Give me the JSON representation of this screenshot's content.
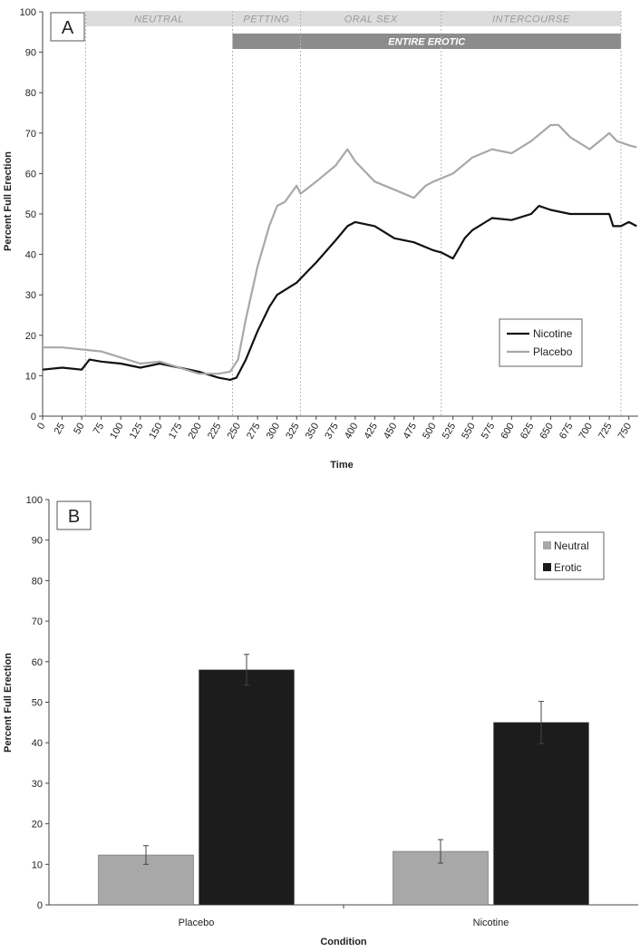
{
  "chart_data": [
    {
      "type": "line",
      "panel_label": "A",
      "xlabel": "Time",
      "ylabel": "Percent Full Erection",
      "xlim": [
        0,
        762
      ],
      "ylim": [
        0,
        100
      ],
      "xticks": [
        0,
        25,
        50,
        75,
        100,
        125,
        150,
        175,
        200,
        225,
        250,
        275,
        300,
        325,
        350,
        375,
        400,
        425,
        450,
        475,
        500,
        525,
        550,
        575,
        600,
        625,
        650,
        675,
        700,
        725,
        750
      ],
      "yticks": [
        0,
        10,
        20,
        30,
        40,
        50,
        60,
        70,
        80,
        90,
        100
      ],
      "phases": [
        {
          "label": "NEUTRAL",
          "start": 0,
          "end": 243
        },
        {
          "label": "PETTING",
          "start": 243,
          "end": 330
        },
        {
          "label": "ORAL SEX",
          "start": 330,
          "end": 510
        },
        {
          "label": "INTERCOURSE",
          "start": 510,
          "end": 740
        }
      ],
      "phase_dividers": [
        55,
        243,
        330,
        510,
        740
      ],
      "erotic_bar": {
        "label": "ENTIRE EROTIC",
        "start": 243,
        "end": 740
      },
      "legend_position": "right",
      "series": [
        {
          "name": "Nicotine",
          "color": "#111111",
          "x": [
            0,
            25,
            50,
            60,
            75,
            100,
            125,
            150,
            175,
            200,
            225,
            240,
            248,
            260,
            275,
            290,
            300,
            325,
            340,
            350,
            375,
            390,
            400,
            425,
            450,
            475,
            500,
            510,
            525,
            540,
            550,
            575,
            600,
            625,
            635,
            650,
            675,
            700,
            725,
            730,
            740,
            750,
            760
          ],
          "values": [
            11.5,
            12,
            11.5,
            14,
            13.5,
            13,
            12,
            13,
            12,
            11,
            9.5,
            9,
            9.5,
            14,
            21,
            27,
            30,
            33,
            36,
            38,
            43.5,
            47,
            48,
            47,
            44,
            43,
            41,
            40.5,
            39,
            44,
            46,
            49,
            48.5,
            50,
            52,
            51,
            50,
            50,
            50,
            47,
            47,
            48,
            47
          ]
        },
        {
          "name": "Placebo",
          "color": "#a8a8a8",
          "x": [
            0,
            25,
            50,
            75,
            100,
            125,
            150,
            175,
            200,
            225,
            240,
            250,
            260,
            275,
            290,
            300,
            310,
            325,
            330,
            350,
            375,
            390,
            400,
            425,
            450,
            475,
            490,
            500,
            525,
            550,
            575,
            600,
            625,
            650,
            660,
            675,
            700,
            725,
            735,
            750,
            760
          ],
          "values": [
            17,
            17,
            16.5,
            16,
            14.5,
            13,
            13.5,
            12,
            10.5,
            10.5,
            11,
            14,
            24,
            37,
            47,
            52,
            53,
            57,
            55,
            58,
            62,
            66,
            63,
            58,
            56,
            54,
            57,
            58,
            60,
            64,
            66,
            65,
            68,
            72,
            72,
            69,
            66,
            70,
            68,
            67,
            66.5
          ]
        }
      ]
    },
    {
      "type": "bar",
      "panel_label": "B",
      "xlabel": "Condition",
      "ylabel": "Percent Full Erection",
      "ylim": [
        0,
        100
      ],
      "yticks": [
        0,
        10,
        20,
        30,
        40,
        50,
        60,
        70,
        80,
        90,
        100
      ],
      "categories": [
        "Placebo",
        "Nicotine"
      ],
      "legend_position": "top-right",
      "series": [
        {
          "name": "Neutral",
          "color": "#a8a8a8",
          "values": [
            12.3,
            13.2
          ],
          "error": [
            2.3,
            2.9
          ]
        },
        {
          "name": "Erotic",
          "color": "#1c1c1c",
          "values": [
            58,
            45
          ],
          "error": [
            3.8,
            5.2
          ]
        }
      ]
    }
  ]
}
